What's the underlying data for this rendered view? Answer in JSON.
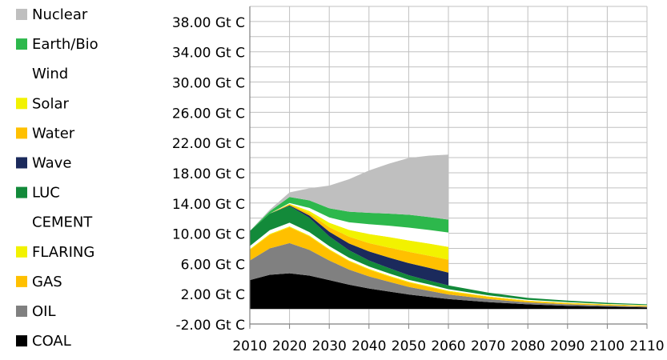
{
  "chart_data": {
    "type": "area",
    "title": "",
    "xlabel": "",
    "ylabel": "",
    "x": [
      2010,
      2015,
      2020,
      2025,
      2030,
      2035,
      2040,
      2045,
      2050,
      2055,
      2060,
      2070,
      2080,
      2090,
      2100,
      2110
    ],
    "xlim": [
      2010,
      2110
    ],
    "ylim": [
      -2,
      40
    ],
    "x_ticks": [
      2010,
      2020,
      2030,
      2040,
      2050,
      2060,
      2070,
      2080,
      2090,
      2100,
      2110
    ],
    "y_ticks": [
      -2,
      2,
      6,
      10,
      14,
      18,
      22,
      26,
      30,
      34,
      38
    ],
    "x_tick_labels": [
      "2010",
      "2020",
      "2030",
      "2040",
      "2050",
      "2060",
      "2070",
      "2080",
      "2090",
      "2100",
      "2110"
    ],
    "y_tick_labels": [
      "-2.00 Gt C",
      "2.00 Gt C",
      "6.00 Gt C",
      "10.00 Gt C",
      "14.00 Gt C",
      "18.00 Gt C",
      "22.00 Gt C",
      "26.00 Gt C",
      "30.00 Gt C",
      "34.00 Gt C",
      "38.00 Gt C"
    ],
    "grid": true,
    "legend_position": "left",
    "series": [
      {
        "name": "COAL",
        "color": "#000000",
        "values": [
          3.8,
          4.5,
          4.7,
          4.4,
          3.8,
          3.2,
          2.7,
          2.3,
          1.9,
          1.6,
          1.3,
          0.9,
          0.6,
          0.4,
          0.3,
          0.2
        ]
      },
      {
        "name": "OIL",
        "color": "#808080",
        "values": [
          2.6,
          3.5,
          4.0,
          3.4,
          2.6,
          2.0,
          1.6,
          1.3,
          1.0,
          0.8,
          0.6,
          0.4,
          0.25,
          0.2,
          0.15,
          0.1
        ]
      },
      {
        "name": "GAS",
        "color": "#FFC000",
        "values": [
          1.4,
          1.8,
          2.1,
          1.8,
          1.4,
          1.1,
          0.9,
          0.7,
          0.6,
          0.5,
          0.4,
          0.3,
          0.2,
          0.15,
          0.1,
          0.1
        ]
      },
      {
        "name": "FLARING",
        "color": "#F2F200",
        "values": [
          0.1,
          0.1,
          0.1,
          0.1,
          0.1,
          0.1,
          0.1,
          0.1,
          0.1,
          0.1,
          0.1,
          0.05,
          0.05,
          0.05,
          0.05,
          0.05
        ]
      },
      {
        "name": "CEMENT",
        "color": "#FFFFFF",
        "values": [
          0.4,
          0.5,
          0.5,
          0.45,
          0.4,
          0.35,
          0.3,
          0.3,
          0.25,
          0.25,
          0.2,
          0.15,
          0.1,
          0.1,
          0.05,
          0.05
        ]
      },
      {
        "name": "LUC",
        "color": "#138A3A",
        "values": [
          2.0,
          2.2,
          2.2,
          1.9,
          1.3,
          1.0,
          0.8,
          0.7,
          0.6,
          0.5,
          0.5,
          0.35,
          0.25,
          0.2,
          0.15,
          0.1
        ]
      },
      {
        "name": "Wave",
        "color": "#1B2A5C",
        "values": [
          0.0,
          0.0,
          0.1,
          0.3,
          0.6,
          0.9,
          1.2,
          1.4,
          1.6,
          1.7,
          1.7,
          0,
          0,
          0,
          0,
          0
        ]
      },
      {
        "name": "Water",
        "color": "#FFC000",
        "values": [
          0.0,
          0.0,
          0.1,
          0.3,
          0.6,
          0.9,
          1.1,
          1.3,
          1.5,
          1.6,
          1.7,
          0,
          0,
          0,
          0,
          0
        ]
      },
      {
        "name": "Solar",
        "color": "#F2F200",
        "values": [
          0.0,
          0.0,
          0.1,
          0.3,
          0.6,
          0.9,
          1.2,
          1.4,
          1.5,
          1.6,
          1.7,
          0,
          0,
          0,
          0,
          0
        ]
      },
      {
        "name": "Wind",
        "color": "#FFFFFF",
        "values": [
          0.0,
          0.0,
          0.1,
          0.4,
          0.7,
          1.0,
          1.3,
          1.5,
          1.7,
          1.8,
          1.9,
          0,
          0,
          0,
          0,
          0
        ]
      },
      {
        "name": "Earth/Bio",
        "color": "#2DB84C",
        "values": [
          0.0,
          0.3,
          0.8,
          1.0,
          1.2,
          1.4,
          1.5,
          1.6,
          1.7,
          1.7,
          1.7,
          0,
          0,
          0,
          0,
          0
        ]
      },
      {
        "name": "Nuclear",
        "color": "#BFBFBF",
        "values": [
          0.0,
          0.2,
          0.6,
          1.6,
          3.0,
          4.3,
          5.6,
          6.6,
          7.5,
          8.1,
          8.6,
          0,
          0,
          0,
          0,
          0
        ]
      }
    ]
  }
}
